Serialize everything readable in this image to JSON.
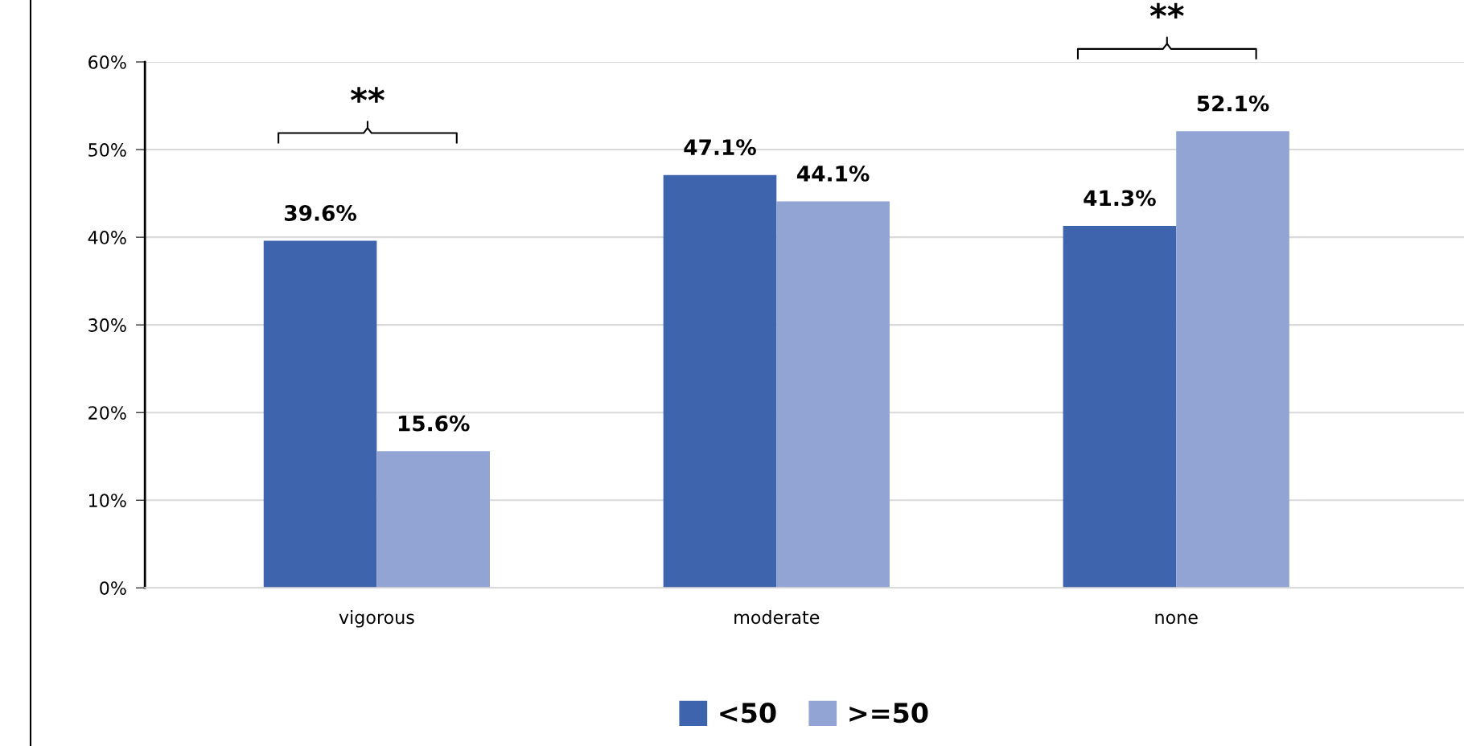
{
  "chart_data": {
    "type": "bar",
    "categories": [
      "vigorous",
      "moderate",
      "none"
    ],
    "series": [
      {
        "name": "<50",
        "color": "#3d64ac",
        "values": [
          39.6,
          47.1,
          41.3
        ],
        "value_labels": [
          "39.6%",
          "47.1%",
          "41.3%"
        ]
      },
      {
        "name": ">=50",
        "color": "#91a4d4",
        "values": [
          15.6,
          44.1,
          52.1
        ],
        "value_labels": [
          "15.6%",
          "44.1%",
          "52.1%"
        ]
      }
    ],
    "ylim": [
      0,
      60
    ],
    "yticks": [
      {
        "value": 0,
        "label": "0%"
      },
      {
        "value": 10,
        "label": "10%"
      },
      {
        "value": 20,
        "label": "20%"
      },
      {
        "value": 30,
        "label": "30%"
      },
      {
        "value": 40,
        "label": "40%"
      },
      {
        "value": 50,
        "label": "50%"
      },
      {
        "value": 60,
        "label": "60%"
      }
    ],
    "grid": "y",
    "legend": "bottom",
    "annotations": [
      "**",
      "**"
    ]
  }
}
